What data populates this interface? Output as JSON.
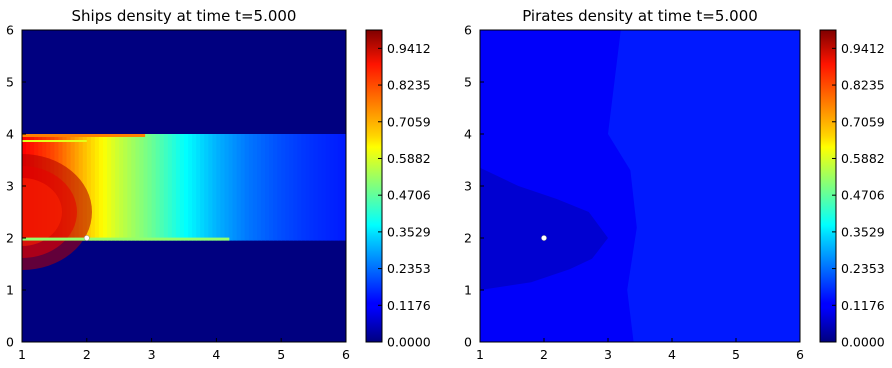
{
  "chart_data": [
    {
      "type": "heatmap",
      "title": "Ships density at time t=5.000",
      "xlim": [
        1,
        6
      ],
      "ylim": [
        0,
        6
      ],
      "x_ticks": [
        "1",
        "2",
        "3",
        "4",
        "5",
        "6"
      ],
      "y_ticks": [
        "0",
        "1",
        "2",
        "3",
        "4",
        "5",
        "6"
      ],
      "colormap": "jet",
      "colorbar_range": [
        0,
        1
      ],
      "colorbar_ticks": [
        "0.0000",
        "0.1176",
        "0.2353",
        "0.3529",
        "0.4706",
        "0.5882",
        "0.7059",
        "0.8235",
        "0.9412"
      ],
      "background_level": 0.0,
      "band": {
        "y_from": 1.95,
        "y_to": 4.0
      },
      "band_profile": [
        {
          "x": 1.0,
          "value": 0.88
        },
        {
          "x": 1.5,
          "value": 0.8
        },
        {
          "x": 2.0,
          "value": 0.68
        },
        {
          "x": 2.5,
          "value": 0.57
        },
        {
          "x": 3.0,
          "value": 0.48
        },
        {
          "x": 3.5,
          "value": 0.38
        },
        {
          "x": 4.0,
          "value": 0.3
        },
        {
          "x": 4.5,
          "value": 0.24
        },
        {
          "x": 5.0,
          "value": 0.2
        },
        {
          "x": 5.5,
          "value": 0.17
        },
        {
          "x": 6.0,
          "value": 0.15
        }
      ],
      "marker": {
        "x": 2.0,
        "y": 2.0
      }
    },
    {
      "type": "heatmap",
      "title": "Pirates density at time t=5.000",
      "xlim": [
        1,
        6
      ],
      "ylim": [
        0,
        6
      ],
      "x_ticks": [
        "1",
        "2",
        "3",
        "4",
        "5",
        "6"
      ],
      "y_ticks": [
        "0",
        "1",
        "2",
        "3",
        "4",
        "5",
        "6"
      ],
      "colormap": "jet",
      "colorbar_range": [
        0,
        1
      ],
      "colorbar_ticks": [
        "0.0000",
        "0.1176",
        "0.2353",
        "0.3529",
        "0.4706",
        "0.5882",
        "0.7059",
        "0.8235",
        "0.9412"
      ],
      "regions": [
        {
          "zone": "left-center bulge",
          "value": 0.08
        },
        {
          "zone": "middle",
          "value": 0.12
        },
        {
          "zone": "right",
          "value": 0.15
        }
      ],
      "marker": {
        "x": 2.0,
        "y": 2.0
      }
    }
  ]
}
